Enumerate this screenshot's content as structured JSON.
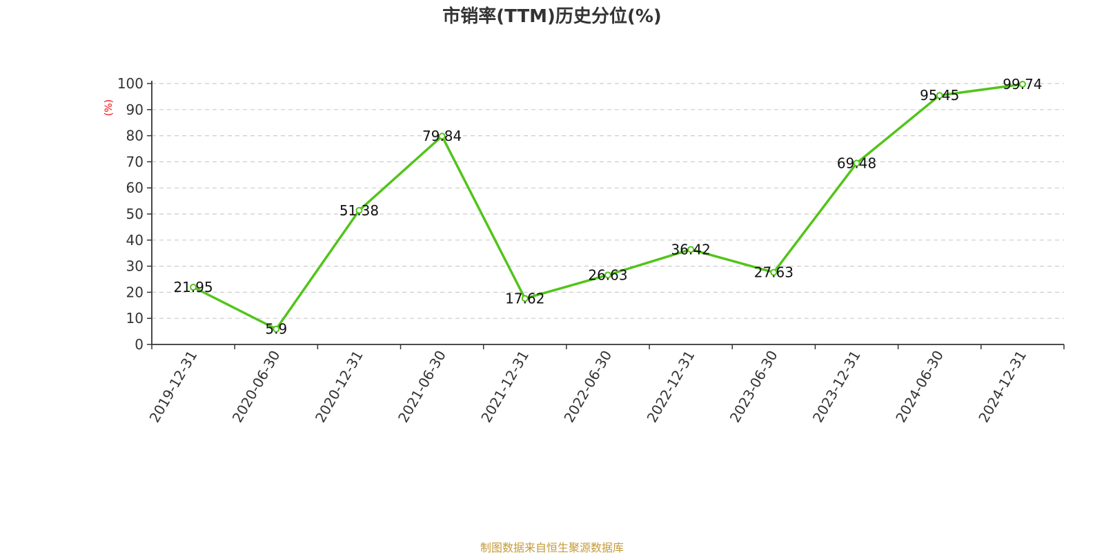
{
  "chart_data": {
    "type": "line",
    "title": "市销率(TTM)历史分位(%)",
    "ylabel": "(%)",
    "x": [
      "2019-12-31",
      "2020-06-30",
      "2020-12-31",
      "2021-06-30",
      "2021-12-31",
      "2022-06-30",
      "2022-12-31",
      "2023-06-30",
      "2023-12-31",
      "2024-06-30",
      "2024-12-31"
    ],
    "series": [
      {
        "values": [
          21.95,
          5.9,
          51.38,
          79.84,
          17.62,
          26.63,
          36.42,
          27.63,
          69.48,
          95.45,
          99.74
        ]
      }
    ],
    "ylim": [
      0,
      100
    ],
    "yticks": [
      0,
      10,
      20,
      30,
      40,
      50,
      60,
      70,
      80,
      90,
      100
    ],
    "grid": "horizontal dashed",
    "colors": {
      "line": "#52c41a",
      "ylabel": "#ff0000",
      "source": "#c49a3a",
      "grid": "#cccccc"
    }
  },
  "footer": {
    "source": "制图数据来自恒生聚源数据库"
  }
}
